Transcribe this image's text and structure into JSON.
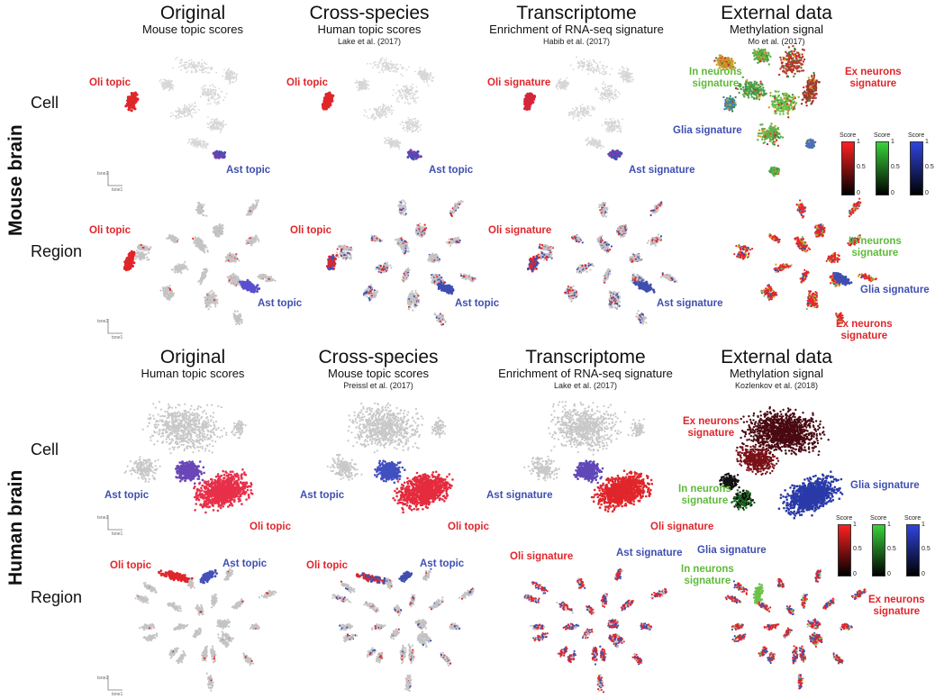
{
  "side_labels": {
    "mouse": "Mouse brain",
    "human": "Human brain"
  },
  "row_labels": {
    "cell": "Cell",
    "region": "Region"
  },
  "mouse_headers": [
    {
      "title": "Original",
      "subtitle": "Mouse topic scores",
      "source": ""
    },
    {
      "title": "Cross-species",
      "subtitle": "Human topic scores",
      "source": "Lake et al. (2017)"
    },
    {
      "title": "Transcriptome",
      "subtitle": "Enrichment of RNA-seq signature",
      "source": "Habib et al. (2017)"
    },
    {
      "title": "External data",
      "subtitle": "Methylation signal",
      "source": "Mo et al. (2017)"
    }
  ],
  "human_headers": [
    {
      "title": "Original",
      "subtitle": "Human topic scores",
      "source": ""
    },
    {
      "title": "Cross-species",
      "subtitle": "Mouse topic scores",
      "source": "Preissl et al. (2017)"
    },
    {
      "title": "Transcriptome",
      "subtitle": "Enrichment of RNA-seq signature",
      "source": "Lake et al. (2017)"
    },
    {
      "title": "External data",
      "subtitle": "Methylation signal",
      "source": "Kozlenkov et al. (2018)"
    }
  ],
  "annotations": {
    "oli_topic": "Oli topic",
    "ast_topic": "Ast topic",
    "oli_signature": "Oli signature",
    "ast_signature": "Ast signature",
    "glia_signature": "Glia signature",
    "in_neurons": "In neurons",
    "ex_neurons": "Ex neurons",
    "signature": "signature"
  },
  "colorbar": {
    "title": "Score",
    "ticks": [
      "1",
      "0.5",
      "0"
    ]
  },
  "axis_labels": {
    "x": "tsne1",
    "y": "tsne2"
  },
  "colors": {
    "red": "#e0262b",
    "blue": "#3f4fb0",
    "green": "#5fba3a",
    "grey": "#c4c4c4",
    "purple": "#8a3aa8"
  }
}
